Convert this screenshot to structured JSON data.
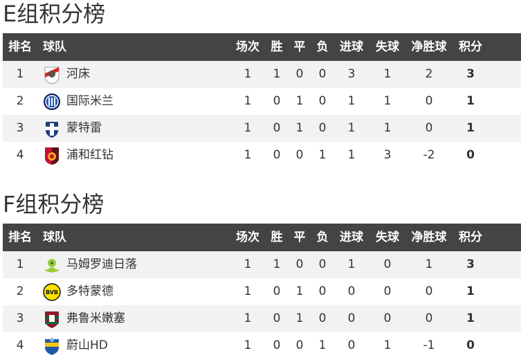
{
  "headers": [
    "排名",
    "球队",
    "场次",
    "胜",
    "平",
    "负",
    "进球",
    "失球",
    "净胜球",
    "积分"
  ],
  "groups": [
    {
      "title": "E组积分榜",
      "teams": [
        {
          "rank": "1",
          "name": "河床",
          "logo": "river-plate-logo",
          "stats": [
            "1",
            "1",
            "0",
            "0",
            "3",
            "1",
            "2",
            "3"
          ]
        },
        {
          "rank": "2",
          "name": "国际米兰",
          "logo": "inter-milan-logo",
          "stats": [
            "1",
            "0",
            "1",
            "0",
            "1",
            "1",
            "0",
            "1"
          ]
        },
        {
          "rank": "3",
          "name": "蒙特雷",
          "logo": "monterrey-logo",
          "stats": [
            "1",
            "0",
            "1",
            "0",
            "1",
            "1",
            "0",
            "1"
          ]
        },
        {
          "rank": "4",
          "name": "浦和红钻",
          "logo": "urawa-reds-logo",
          "stats": [
            "1",
            "0",
            "0",
            "1",
            "1",
            "3",
            "-2",
            "0"
          ]
        }
      ]
    },
    {
      "title": "F组积分榜",
      "teams": [
        {
          "rank": "1",
          "name": "马姆罗迪日落",
          "logo": "mamelodi-sundowns-logo",
          "stats": [
            "1",
            "1",
            "0",
            "0",
            "1",
            "0",
            "1",
            "3"
          ]
        },
        {
          "rank": "2",
          "name": "多特蒙德",
          "logo": "dortmund-logo",
          "stats": [
            "1",
            "0",
            "1",
            "0",
            "0",
            "0",
            "0",
            "1"
          ]
        },
        {
          "rank": "3",
          "name": "弗鲁米嫩塞",
          "logo": "fluminense-logo",
          "stats": [
            "1",
            "0",
            "1",
            "0",
            "0",
            "0",
            "0",
            "1"
          ]
        },
        {
          "rank": "4",
          "name": "蔚山HD",
          "logo": "ulsan-hd-logo",
          "stats": [
            "1",
            "0",
            "0",
            "1",
            "0",
            "1",
            "-1",
            "0"
          ]
        }
      ]
    }
  ]
}
